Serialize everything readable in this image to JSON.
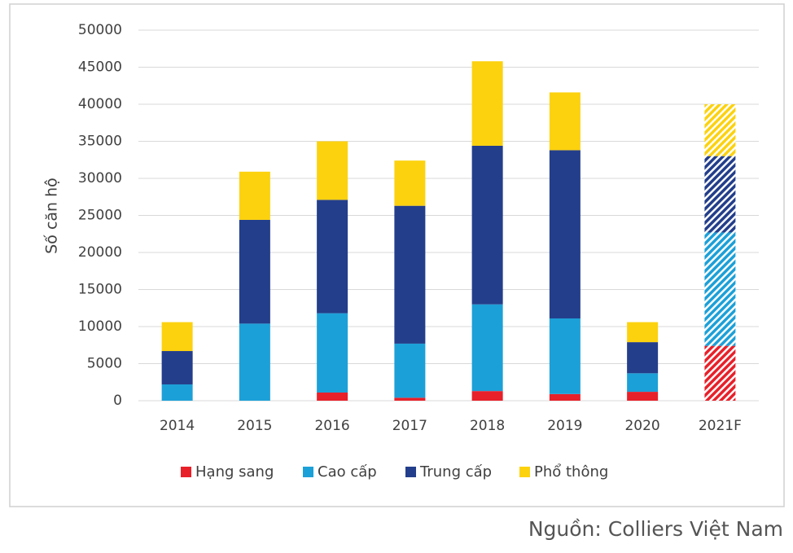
{
  "chart_data": {
    "type": "stacked_bar",
    "y_label": "Số căn hộ",
    "categories": [
      "2014",
      "2015",
      "2016",
      "2017",
      "2018",
      "2019",
      "2020",
      "2021F"
    ],
    "hatched": [
      false,
      false,
      false,
      false,
      false,
      false,
      false,
      true
    ],
    "series": [
      {
        "name": "Hạng sang",
        "color": "#e8202a",
        "values": [
          0,
          0,
          1100,
          400,
          1300,
          900,
          1200,
          7400
        ]
      },
      {
        "name": "Cao cấp",
        "color": "#1ca0d8",
        "values": [
          2200,
          10400,
          10700,
          7300,
          11700,
          10200,
          2500,
          15300
        ]
      },
      {
        "name": "Trung cấp",
        "color": "#233e8b",
        "values": [
          4500,
          14000,
          15300,
          18600,
          21400,
          22700,
          4200,
          10300
        ]
      },
      {
        "name": "Phổ thông",
        "color": "#fcd20f",
        "values": [
          3900,
          6500,
          7900,
          6100,
          11400,
          7800,
          2700,
          7000
        ]
      }
    ],
    "ylim": [
      0,
      50000
    ],
    "yticks": [
      0,
      5000,
      10000,
      15000,
      20000,
      25000,
      30000,
      35000,
      40000,
      45000,
      50000
    ],
    "grid": true,
    "legend": "bottom",
    "source": "Nguồn: Colliers Việt Nam"
  }
}
